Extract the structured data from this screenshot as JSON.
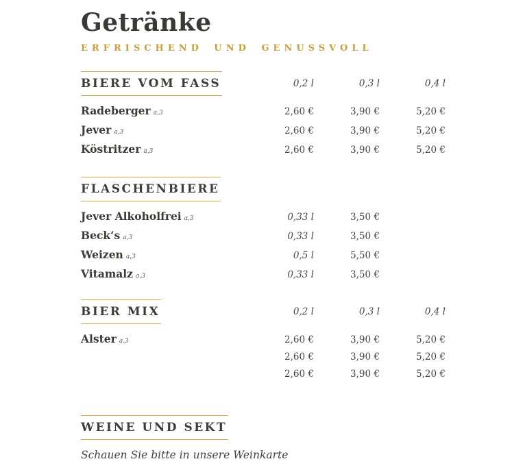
{
  "page_title": "Getränke",
  "page_subtitle": "ERFRISCHEND UND GENUSSVOLL",
  "colors": {
    "accent_gold_text": "#C7A03C",
    "accent_gold_rule": "#CBA64A",
    "text_dark": "#3C3934"
  },
  "sections": [
    {
      "id": "biere-vom-fass",
      "heading": "BIERE VOM FASS",
      "size_headers": [
        "0,2 l",
        "0,3 l",
        "0,4 l"
      ],
      "rows": [
        {
          "name": "Radeberger",
          "note": "a,3",
          "cells": [
            "2,60 €",
            "3,90 €",
            "5,20 €"
          ]
        },
        {
          "name": "Jever",
          "note": "a,3",
          "cells": [
            "2,60 €",
            "3,90 €",
            "5,20 €"
          ]
        },
        {
          "name": "Köstritzer",
          "note": "a,3",
          "cells": [
            "2,60 €",
            "3,90 €",
            "5,20 €"
          ]
        }
      ]
    },
    {
      "id": "flaschenbiere",
      "heading": "FLASCHENBIERE",
      "size_headers": null,
      "rows": [
        {
          "name": "Jever Alkoholfrei",
          "note": "a,3",
          "cells": [
            "0,33 l",
            "3,50 €",
            ""
          ]
        },
        {
          "name": "Beck‘s",
          "note": "a,3",
          "cells": [
            "0,33 l",
            "3,50 €",
            ""
          ]
        },
        {
          "name": "Weizen",
          "note": "a,3",
          "cells": [
            "0,5 l",
            "5,50 €",
            ""
          ]
        },
        {
          "name": "Vitamalz",
          "note": "a,3",
          "cells": [
            "0,33 l",
            "3,50 €",
            ""
          ]
        }
      ]
    },
    {
      "id": "bier-mix",
      "heading": "BIER MIX",
      "size_headers": [
        "0,2 l",
        "0,3 l",
        "0,4 l"
      ],
      "rows": [
        {
          "name": "Alster",
          "note": "a,3",
          "cells": [
            "2,60 €",
            "3,90 €",
            "5,20 €"
          ]
        },
        {
          "name": "",
          "note": "",
          "cells": [
            "2,60 €",
            "3,90 €",
            "5,20 €"
          ]
        },
        {
          "name": "",
          "note": "",
          "cells": [
            "2,60 €",
            "3,90 €",
            "5,20 €"
          ]
        }
      ]
    },
    {
      "id": "weine-und-sekt",
      "heading": "WEINE UND SEKT",
      "size_headers": null,
      "rows": [],
      "note": "Schauen Sie bitte in unsere Weinkarte"
    }
  ]
}
